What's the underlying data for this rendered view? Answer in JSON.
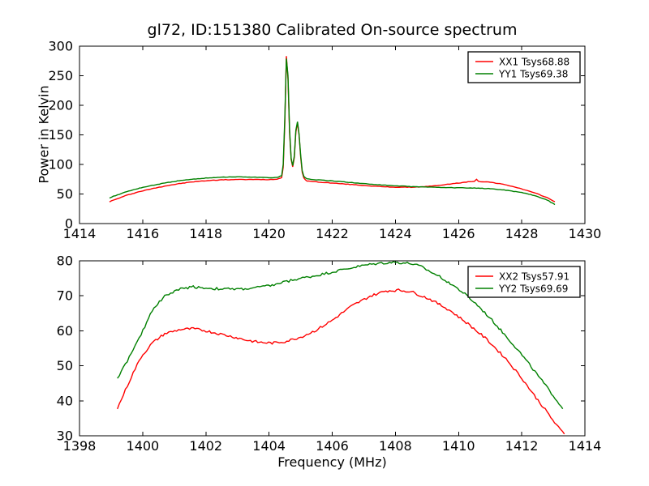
{
  "figure": {
    "background": "#ffffff",
    "frame_color": "#000000"
  },
  "chart_data": [
    {
      "type": "line",
      "title": "gl72, ID:151380 Calibrated On-source spectrum",
      "xlabel": "",
      "ylabel": "Power in Kelvin",
      "xlim": [
        1414,
        1430
      ],
      "ylim": [
        0,
        300
      ],
      "xticks": [
        1414,
        1416,
        1418,
        1420,
        1422,
        1424,
        1426,
        1428,
        1430
      ],
      "yticks": [
        0,
        50,
        100,
        150,
        200,
        250,
        300
      ],
      "grid": false,
      "legend_position": "upper right",
      "series": [
        {
          "name": "XX1 Tsys68.88",
          "color": "#ff0000",
          "noise": 0.4,
          "x": [
            1414.95,
            1415.2,
            1415.5,
            1415.9,
            1416.3,
            1416.7,
            1417.1,
            1417.5,
            1418.0,
            1418.5,
            1419.0,
            1419.5,
            1420.0,
            1420.25,
            1420.4,
            1420.45,
            1420.5,
            1420.55,
            1420.6,
            1420.65,
            1420.7,
            1420.75,
            1420.8,
            1420.85,
            1420.9,
            1420.95,
            1421.0,
            1421.05,
            1421.1,
            1421.2,
            1421.5,
            1422.0,
            1422.5,
            1423.0,
            1423.5,
            1424.0,
            1424.5,
            1424.8,
            1425.2,
            1425.6,
            1426.0,
            1426.3,
            1426.5,
            1426.57,
            1426.63,
            1426.7,
            1427.0,
            1427.3,
            1427.7,
            1428.1,
            1428.5,
            1428.8,
            1429.05
          ],
          "y": [
            37,
            42,
            48,
            54,
            59,
            63.5,
            67,
            70,
            72.5,
            74,
            74.5,
            74.5,
            74.5,
            75,
            78,
            95,
            170,
            283,
            245,
            155,
            108,
            96,
            112,
            155,
            170,
            150,
            113,
            87,
            77,
            72,
            70.5,
            68.5,
            66.5,
            64.5,
            62.5,
            61.5,
            61.5,
            62,
            63.5,
            66,
            68.5,
            70.5,
            71.5,
            75,
            71.5,
            71,
            70,
            67.5,
            63,
            57,
            50,
            44,
            37
          ]
        },
        {
          "name": "YY1 Tsys69.38",
          "color": "#008000",
          "noise": 0.4,
          "x": [
            1414.95,
            1415.2,
            1415.5,
            1415.9,
            1416.3,
            1416.7,
            1417.1,
            1417.5,
            1418.0,
            1418.5,
            1419.0,
            1419.5,
            1420.0,
            1420.25,
            1420.4,
            1420.45,
            1420.5,
            1420.55,
            1420.6,
            1420.65,
            1420.7,
            1420.75,
            1420.8,
            1420.85,
            1420.9,
            1420.95,
            1421.0,
            1421.05,
            1421.1,
            1421.2,
            1421.5,
            1422.0,
            1422.5,
            1423.0,
            1423.5,
            1424.0,
            1424.5,
            1424.8,
            1425.2,
            1425.6,
            1426.0,
            1426.5,
            1427.0,
            1427.5,
            1428.0,
            1428.4,
            1428.8,
            1429.05
          ],
          "y": [
            43.5,
            48.5,
            54,
            60,
            64.5,
            68.5,
            72,
            74.5,
            77,
            78.5,
            79,
            78.5,
            77.5,
            78,
            81,
            100,
            180,
            279,
            250,
            160,
            110,
            98,
            115,
            158,
            172,
            152,
            116,
            90,
            80,
            75.5,
            74,
            72,
            70,
            67.5,
            65.5,
            63.8,
            62.5,
            62,
            61.5,
            61,
            60.5,
            60,
            59,
            56.5,
            52.5,
            47.5,
            40,
            32
          ]
        }
      ]
    },
    {
      "type": "line",
      "title": "",
      "xlabel": "Frequency (MHz)",
      "ylabel": "",
      "xlim": [
        1398,
        1414
      ],
      "ylim": [
        30,
        80
      ],
      "xticks": [
        1398,
        1400,
        1402,
        1404,
        1406,
        1408,
        1410,
        1412,
        1414
      ],
      "yticks": [
        30,
        40,
        50,
        60,
        70,
        80
      ],
      "grid": false,
      "legend_position": "upper right",
      "series": [
        {
          "name": "XX2 Tsys57.91",
          "color": "#ff0000",
          "noise": 0.35,
          "x": [
            1399.2,
            1399.45,
            1399.7,
            1399.95,
            1400.3,
            1400.7,
            1401.2,
            1401.6,
            1402.0,
            1402.4,
            1402.9,
            1403.3,
            1403.7,
            1404.1,
            1404.5,
            1405.0,
            1405.5,
            1406.0,
            1406.6,
            1407.2,
            1407.7,
            1408.1,
            1408.5,
            1409.1,
            1409.7,
            1410.3,
            1410.9,
            1411.5,
            1412.0,
            1412.4,
            1412.8,
            1413.1,
            1413.35
          ],
          "y": [
            37.8,
            43,
            48,
            52.5,
            56.5,
            59.2,
            60.4,
            60.6,
            60.0,
            59.2,
            58.2,
            57.3,
            56.7,
            56.5,
            56.9,
            58.2,
            60.2,
            63.0,
            67.0,
            69.9,
            71.4,
            71.6,
            71.2,
            69.0,
            66.0,
            62.0,
            57.5,
            52.0,
            46.5,
            41.5,
            36.8,
            33.0,
            30.5
          ]
        },
        {
          "name": "YY2 Tsys69.69",
          "color": "#008000",
          "noise": 0.35,
          "x": [
            1399.2,
            1399.45,
            1399.7,
            1399.95,
            1400.3,
            1400.7,
            1401.2,
            1401.6,
            1402.0,
            1402.4,
            1402.9,
            1403.3,
            1403.7,
            1404.1,
            1404.5,
            1405.0,
            1405.5,
            1406.0,
            1406.5,
            1407.0,
            1407.5,
            1408.0,
            1408.5,
            1408.8,
            1409.1,
            1409.4,
            1409.8,
            1410.2,
            1410.6,
            1411.0,
            1411.45,
            1411.9,
            1412.3,
            1412.7,
            1413.0,
            1413.3
          ],
          "y": [
            46.5,
            50.4,
            54.5,
            58.9,
            65.9,
            70.0,
            72.0,
            72.6,
            72.2,
            72.0,
            71.9,
            72.0,
            72.5,
            73.0,
            74.0,
            75.0,
            75.8,
            76.8,
            77.8,
            78.7,
            79.3,
            79.6,
            79.2,
            78.4,
            76.9,
            75.5,
            73.2,
            70.5,
            67.3,
            63.6,
            59.0,
            54.3,
            49.7,
            45.0,
            41.5,
            37.7
          ]
        }
      ]
    }
  ]
}
